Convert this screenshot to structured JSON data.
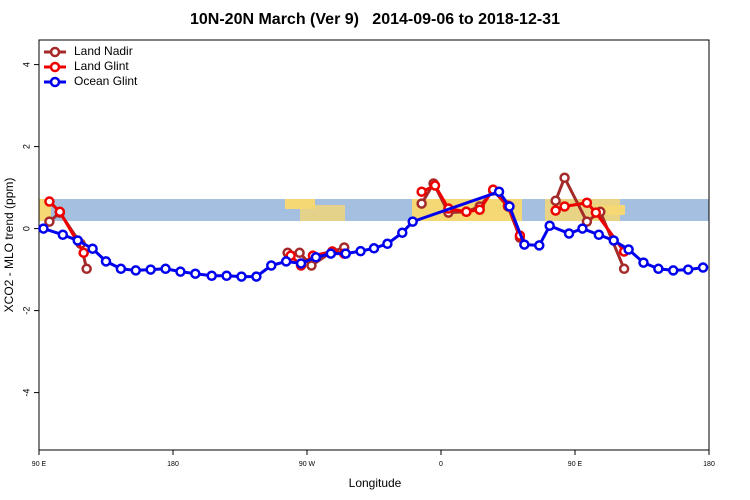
{
  "chart_data": {
    "type": "line",
    "title": "10N-20N March (Ver 9)   2014-09-06 to 2018-12-31",
    "x_label": "Longitude",
    "y_label": "XCO2 - MLO trend (ppm)",
    "xlim": [
      90,
      540
    ],
    "ylim": [
      -5.4,
      4.6
    ],
    "xticks": [
      {
        "value": 90,
        "label": "90 E"
      },
      180,
      {
        "value": 270,
        "label": "90 W"
      },
      {
        "value": 360,
        "label": "0"
      },
      {
        "value": 450,
        "label": "90 E"
      },
      {
        "value": 540,
        "label": "180"
      }
    ],
    "yticks": [
      -4,
      -2,
      0,
      2,
      4
    ],
    "legend": "top-left",
    "series": [
      {
        "name": "Land Nadir",
        "color": "#a52a2a",
        "x": [
          97,
          104,
          118,
          122,
          null,
          257,
          265,
          273,
          287,
          295,
          null,
          347,
          355,
          365,
          377,
          386,
          395,
          405,
          413,
          null,
          437,
          443,
          458,
          467,
          483
        ],
        "values": [
          0.17,
          0.39,
          -0.37,
          -0.98,
          null,
          -0.59,
          -0.59,
          -0.9,
          -0.56,
          -0.46,
          null,
          0.61,
          1.1,
          0.39,
          0.41,
          0.54,
          0.93,
          0.54,
          -0.22,
          null,
          0.68,
          1.24,
          0.17,
          0.41,
          -0.98
        ]
      },
      {
        "name": "Land Glint",
        "color": "#ee0000",
        "x": [
          97,
          104,
          120,
          null,
          259,
          266,
          274,
          287,
          295,
          null,
          347,
          356,
          365,
          377,
          386,
          395,
          405,
          413,
          null,
          437,
          443,
          458,
          464,
          483
        ],
        "values": [
          0.66,
          0.41,
          -0.59,
          null,
          -0.66,
          -0.9,
          -0.66,
          -0.56,
          -0.61,
          null,
          0.9,
          1.05,
          0.49,
          0.41,
          0.46,
          0.95,
          0.56,
          -0.17,
          null,
          0.44,
          0.54,
          0.63,
          0.39,
          -0.56
        ]
      },
      {
        "name": "Ocean Glint",
        "color": "#0000ee",
        "x": [
          93,
          106,
          116,
          126,
          135,
          145,
          155,
          165,
          175,
          185,
          195,
          206,
          216,
          226,
          236,
          246,
          256,
          266,
          276,
          286,
          296,
          306,
          315,
          324,
          334,
          341,
          399,
          406,
          416,
          426,
          433,
          446,
          455,
          466,
          476,
          486,
          496,
          506,
          516,
          526,
          536
        ],
        "values": [
          0.0,
          -0.15,
          -0.29,
          -0.49,
          -0.8,
          -0.98,
          -1.02,
          -1.0,
          -0.98,
          -1.05,
          -1.1,
          -1.15,
          -1.15,
          -1.17,
          -1.17,
          -0.9,
          -0.8,
          -0.85,
          -0.7,
          -0.61,
          -0.61,
          -0.55,
          -0.48,
          -0.37,
          -0.1,
          0.17,
          0.9,
          0.54,
          -0.39,
          -0.41,
          0.07,
          -0.12,
          0.0,
          -0.15,
          -0.29,
          -0.51,
          -0.83,
          -0.98,
          -1.02,
          -1.0,
          -0.95
        ]
      }
    ]
  }
}
